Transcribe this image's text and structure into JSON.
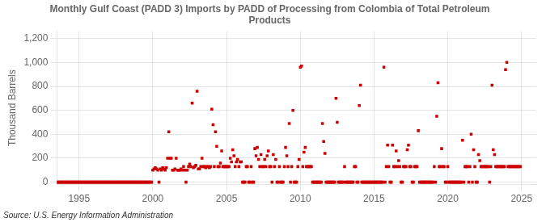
{
  "chart_data": {
    "type": "scatter",
    "title": "Monthly Gulf Coast (PADD 3) Imports by PADD of Processing from Colombia of Total Petroleum\nProducts",
    "ylabel": "Thousand Barrels",
    "annotations": [
      "Source: U.S. Energy Information Administration"
    ],
    "color": "#cc0000",
    "marker": "square",
    "grid": true,
    "xlim": [
      1993.5,
      2026.0
    ],
    "ylim": [
      -20,
      1260
    ],
    "xticks": [
      1995,
      2000,
      2005,
      2010,
      2015,
      2020,
      2025
    ],
    "yticks": [
      0,
      200,
      400,
      600,
      800,
      {
        "value": 1000,
        "label": "1,000"
      },
      {
        "value": 1200,
        "label": "1,200"
      }
    ],
    "x": [
      1993.5,
      1993.583,
      1993.667,
      1993.75,
      1993.833,
      1993.917,
      1994.0,
      1994.083,
      1994.167,
      1994.25,
      1994.333,
      1994.417,
      1994.5,
      1994.583,
      1994.667,
      1994.75,
      1994.833,
      1994.917,
      1995.0,
      1995.083,
      1995.167,
      1995.25,
      1995.333,
      1995.417,
      1995.5,
      1995.583,
      1995.667,
      1995.75,
      1995.833,
      1995.917,
      1996.0,
      1996.083,
      1996.167,
      1996.25,
      1996.333,
      1996.417,
      1996.5,
      1996.583,
      1996.667,
      1996.75,
      1996.833,
      1996.917,
      1997.0,
      1997.083,
      1997.167,
      1997.25,
      1997.333,
      1997.417,
      1997.5,
      1997.583,
      1997.667,
      1997.75,
      1997.833,
      1997.917,
      1998.0,
      1998.083,
      1998.167,
      1998.25,
      1998.333,
      1998.417,
      1998.5,
      1998.583,
      1998.667,
      1998.75,
      1998.833,
      1998.917,
      1999.0,
      1999.083,
      1999.167,
      1999.25,
      1999.333,
      1999.417,
      1999.5,
      1999.583,
      1999.667,
      1999.75,
      1999.833,
      1999.917,
      2000.0,
      2000.083,
      2000.167,
      2000.25,
      2000.333,
      2000.417,
      2000.5,
      2000.583,
      2000.667,
      2000.75,
      2000.833,
      2000.917,
      2001.0,
      2001.083,
      2001.167,
      2001.25,
      2001.333,
      2001.417,
      2001.5,
      2001.583,
      2001.667,
      2001.75,
      2001.833,
      2001.917,
      2002.0,
      2002.083,
      2002.167,
      2002.25,
      2002.333,
      2002.417,
      2002.5,
      2002.583,
      2002.667,
      2002.75,
      2002.833,
      2002.917,
      2003.0,
      2003.083,
      2003.167,
      2003.25,
      2003.333,
      2003.417,
      2003.5,
      2003.583,
      2003.667,
      2003.75,
      2003.833,
      2003.917,
      2004.0,
      2004.083,
      2004.167,
      2004.25,
      2004.333,
      2004.417,
      2004.5,
      2004.583,
      2004.667,
      2004.75,
      2004.833,
      2004.917,
      2005.0,
      2005.083,
      2005.167,
      2005.25,
      2005.333,
      2005.417,
      2005.5,
      2005.583,
      2005.667,
      2005.75,
      2005.833,
      2005.917,
      2006.0,
      2006.083,
      2006.167,
      2006.25,
      2006.333,
      2006.417,
      2006.5,
      2006.583,
      2006.667,
      2006.75,
      2006.833,
      2006.917,
      2007.0,
      2007.083,
      2007.167,
      2007.25,
      2007.333,
      2007.417,
      2007.5,
      2007.583,
      2007.667,
      2007.75,
      2007.833,
      2007.917,
      2008.0,
      2008.083,
      2008.167,
      2008.25,
      2008.333,
      2008.417,
      2008.5,
      2008.583,
      2008.667,
      2008.75,
      2008.833,
      2008.917,
      2009.0,
      2009.083,
      2009.167,
      2009.25,
      2009.333,
      2009.417,
      2009.5,
      2009.583,
      2009.667,
      2009.75,
      2009.833,
      2009.917,
      2010.0,
      2010.083,
      2010.167,
      2010.25,
      2010.333,
      2010.417,
      2010.5,
      2010.583,
      2010.667,
      2010.75,
      2010.833,
      2010.917,
      2011.0,
      2011.083,
      2011.167,
      2011.25,
      2011.333,
      2011.417,
      2011.5,
      2011.583,
      2011.667,
      2011.75,
      2011.833,
      2011.917,
      2012.0,
      2012.083,
      2012.167,
      2012.25,
      2012.333,
      2012.417,
      2012.5,
      2012.583,
      2012.667,
      2012.75,
      2012.833,
      2012.917,
      2013.0,
      2013.083,
      2013.167,
      2013.25,
      2013.333,
      2013.417,
      2013.5,
      2013.583,
      2013.667,
      2013.75,
      2013.833,
      2013.917,
      2014.0,
      2014.083,
      2014.167,
      2014.25,
      2014.333,
      2014.417,
      2014.5,
      2014.583,
      2014.667,
      2014.75,
      2014.833,
      2014.917,
      2015.0,
      2015.083,
      2015.167,
      2015.25,
      2015.333,
      2015.417,
      2015.5,
      2015.583,
      2015.667,
      2015.75,
      2015.833,
      2015.917,
      2016.0,
      2016.083,
      2016.167,
      2016.25,
      2016.333,
      2016.417,
      2016.5,
      2016.583,
      2016.667,
      2016.75,
      2016.833,
      2016.917,
      2017.0,
      2017.083,
      2017.167,
      2017.25,
      2017.333,
      2017.417,
      2017.5,
      2017.583,
      2017.667,
      2017.75,
      2017.833,
      2017.917,
      2018.0,
      2018.083,
      2018.167,
      2018.25,
      2018.333,
      2018.417,
      2018.5,
      2018.583,
      2018.667,
      2018.75,
      2018.833,
      2018.917,
      2019.0,
      2019.083,
      2019.167,
      2019.25,
      2019.333,
      2019.417,
      2019.5,
      2019.583,
      2019.667,
      2019.75,
      2019.833,
      2019.917,
      2020.0,
      2020.083,
      2020.167,
      2020.25,
      2020.333,
      2020.417,
      2020.5,
      2020.583,
      2020.667,
      2020.75,
      2020.833,
      2020.917,
      2021.0,
      2021.083,
      2021.167,
      2021.25,
      2021.333,
      2021.417,
      2021.5,
      2021.583,
      2021.667,
      2021.75,
      2021.833,
      2021.917,
      2022.0,
      2022.083,
      2022.167,
      2022.25,
      2022.333,
      2022.417,
      2022.5,
      2022.583,
      2022.667,
      2022.75,
      2022.833,
      2022.917,
      2023.0,
      2023.083,
      2023.167,
      2023.25,
      2023.333,
      2023.417,
      2023.5,
      2023.583,
      2023.667,
      2023.75,
      2023.833,
      2023.917,
      2024.0,
      2024.083,
      2024.167,
      2024.25,
      2024.333,
      2024.417,
      2024.5,
      2024.583,
      2024.667,
      2024.75,
      2024.833,
      2024.917
    ],
    "values": [
      0,
      0,
      0,
      0,
      0,
      0,
      0,
      0,
      0,
      0,
      0,
      0,
      0,
      0,
      0,
      0,
      0,
      0,
      0,
      0,
      0,
      0,
      0,
      0,
      0,
      0,
      0,
      0,
      0,
      0,
      0,
      0,
      0,
      0,
      0,
      0,
      0,
      0,
      0,
      0,
      0,
      0,
      0,
      0,
      0,
      0,
      0,
      0,
      0,
      0,
      0,
      0,
      0,
      0,
      0,
      0,
      0,
      0,
      0,
      0,
      0,
      0,
      0,
      0,
      0,
      0,
      0,
      0,
      0,
      0,
      0,
      0,
      0,
      0,
      0,
      0,
      0,
      0,
      100,
      110,
      120,
      110,
      100,
      0,
      110,
      100,
      120,
      110,
      100,
      120,
      200,
      420,
      200,
      200,
      100,
      100,
      110,
      200,
      100,
      100,
      100,
      110,
      100,
      130,
      100,
      0,
      100,
      130,
      150,
      130,
      660,
      120,
      130,
      140,
      760,
      110,
      110,
      130,
      200,
      130,
      130,
      120,
      130,
      130,
      120,
      130,
      610,
      480,
      130,
      420,
      300,
      130,
      130,
      160,
      260,
      130,
      130,
      130,
      130,
      130,
      130,
      200,
      170,
      270,
      220,
      130,
      170,
      190,
      130,
      170,
      170,
      0,
      0,
      0,
      130,
      130,
      0,
      0,
      130,
      0,
      0,
      280,
      220,
      290,
      190,
      130,
      230,
      130,
      130,
      190,
      130,
      220,
      260,
      130,
      130,
      0,
      230,
      130,
      190,
      0,
      0,
      130,
      0,
      0,
      0,
      130,
      290,
      220,
      130,
      490,
      0,
      130,
      600,
      0,
      0,
      0,
      130,
      190,
      960,
      970,
      130,
      250,
      290,
      130,
      130,
      130,
      130,
      130,
      0,
      0,
      0,
      0,
      0,
      0,
      0,
      0,
      490,
      340,
      240,
      0,
      0,
      0,
      0,
      0,
      0,
      0,
      0,
      700,
      500,
      0,
      0,
      0,
      0,
      0,
      130,
      0,
      0,
      0,
      0,
      0,
      0,
      0,
      130,
      130,
      0,
      0,
      640,
      810,
      0,
      0,
      0,
      0,
      0,
      0,
      0,
      0,
      0,
      0,
      0,
      0,
      0,
      0,
      0,
      0,
      0,
      0,
      960,
      0,
      130,
      310,
      130,
      0,
      0,
      310,
      130,
      130,
      260,
      130,
      180,
      130,
      0,
      0,
      130,
      130,
      130,
      270,
      310,
      130,
      130,
      0,
      0,
      130,
      130,
      130,
      430,
      0,
      0,
      0,
      0,
      0,
      0,
      0,
      0,
      0,
      0,
      0,
      0,
      130,
      0,
      550,
      830,
      130,
      130,
      280,
      130,
      130,
      0,
      0,
      130,
      0,
      0,
      0,
      0,
      0,
      0,
      0,
      0,
      0,
      0,
      0,
      350,
      0,
      130,
      130,
      130,
      0,
      130,
      400,
      0,
      270,
      130,
      0,
      0,
      230,
      180,
      130,
      130,
      130,
      130,
      130,
      130,
      130,
      0,
      130,
      810,
      270,
      230,
      130,
      130,
      130,
      130,
      130,
      130,
      130,
      130,
      940,
      1000,
      130,
      130,
      130,
      130,
      130,
      130,
      130,
      130,
      130,
      130,
      130
    ]
  }
}
